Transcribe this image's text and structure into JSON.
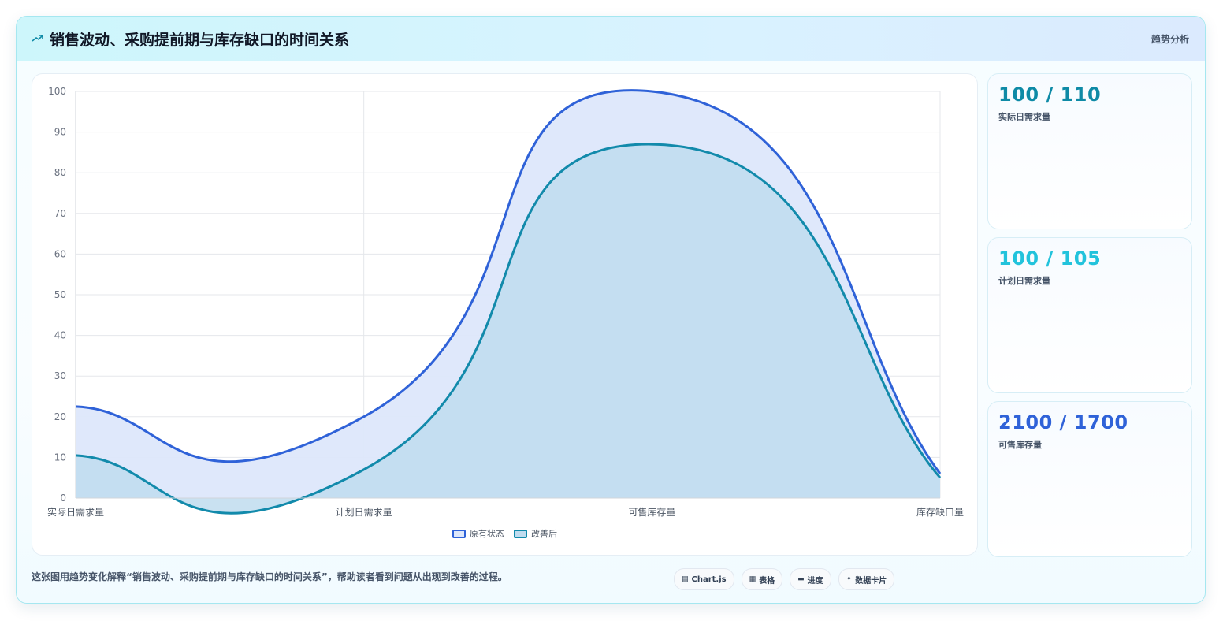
{
  "header": {
    "title": "销售波动、采购提前期与库存缺口的时间关系",
    "tag": "趋势分析"
  },
  "chart_data": {
    "type": "area",
    "categories": [
      "实际日需求量",
      "计划日需求量",
      "可售库存量",
      "库存缺口量"
    ],
    "series": [
      {
        "name": "原有状态",
        "values": [
          22.5,
          20,
          100,
          6
        ],
        "color": "#2f62d8",
        "fill": "#dde7fb"
      },
      {
        "name": "改善后",
        "values": [
          10.5,
          7,
          87,
          5
        ],
        "color": "#128aab",
        "fill": "#c0dcef"
      }
    ],
    "ylim": [
      0,
      100
    ],
    "yticks": [
      "0",
      "10",
      "20",
      "30",
      "40",
      "50",
      "60",
      "70",
      "80",
      "90",
      "100"
    ],
    "grid": true,
    "legend_position": "bottom",
    "smooth": true
  },
  "stats": [
    {
      "value": "100 / 110",
      "label": "实际日需求量",
      "color": "#0e8aa6"
    },
    {
      "value": "100 / 105",
      "label": "计划日需求量",
      "color": "#22c3dc"
    },
    {
      "value": "2100 / 1700",
      "label": "可售库存量",
      "color": "#2f62d8"
    }
  ],
  "footer": {
    "description": "这张图用趋势变化解释“销售波动、采购提前期与库存缺口的时间关系”，帮助读者看到问题从出现到改善的过程。"
  },
  "chips": [
    {
      "label": "Chart.js",
      "icon": "chart-icon"
    },
    {
      "label": "表格",
      "icon": "table-icon"
    },
    {
      "label": "进度",
      "icon": "progress-icon"
    },
    {
      "label": "数据卡片",
      "icon": "sparkle-icon"
    }
  ]
}
